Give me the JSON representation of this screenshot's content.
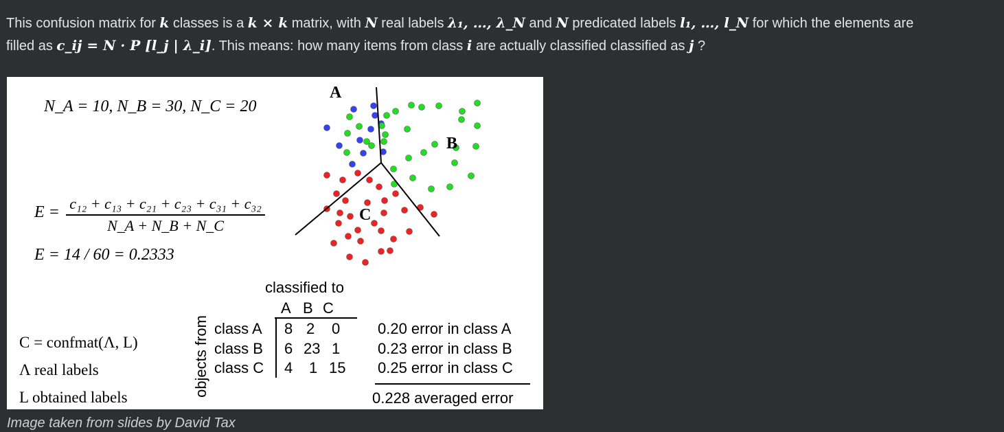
{
  "paragraph": {
    "line1": {
      "p1": "This confusion matrix for",
      "k1": "k",
      "p2": "classes is a",
      "kxk": "k × k",
      "p3": "matrix, with",
      "N1": "N",
      "p4": "real labels",
      "lambdas": "λ₁, …, λ_N",
      "p5": "and",
      "N2": "N",
      "p6": "predicated labels",
      "ls": "l₁, …, l_N",
      "p7": "for which the elements are"
    },
    "line2": {
      "p1": "filled as",
      "formula": "c_ij = N · P [l_j | λ_i]",
      "p2": ". This means: how many items from class",
      "i": "i",
      "p3": "are actually classified classified as",
      "j": "j",
      "p4": "?"
    }
  },
  "figure": {
    "counts": "N_A = 10,  N_B = 30,  N_C = 20",
    "error_formula": {
      "lhs": "E =",
      "numerator": "c₁₂ + c₁₃ + c₂₁ + c₂₃ + c₃₁ + c₃₂",
      "denominator": "N_A + N_B + N_C"
    },
    "error_value": "E = 14 / 60 = 0.2333",
    "confmat": "C = confmat(Λ, L)",
    "legend_real": "Λ  real labels",
    "legend_obtained": "L  obtained labels",
    "scatter_labels": {
      "a": "A",
      "b": "B",
      "c": "C"
    },
    "colors": {
      "blue": "#3344ee",
      "green": "#22dd22",
      "red": "#ee2222"
    },
    "vertical_label": "objects from",
    "table": {
      "title": "classified to",
      "columns": [
        "A",
        "B",
        "C"
      ],
      "rows": [
        {
          "label": "class A",
          "values": [
            "8",
            "2",
            "0"
          ],
          "error": "0.20 error in class A"
        },
        {
          "label": "class B",
          "values": [
            "6",
            "23",
            "1"
          ],
          "error": "0.23 error in class B"
        },
        {
          "label": "class C",
          "values": [
            "4",
            "1",
            "15"
          ],
          "error": "0.25 error in class C"
        }
      ],
      "average": "0.228 averaged error"
    }
  },
  "caption": "Image taken from slides by David Tax"
}
